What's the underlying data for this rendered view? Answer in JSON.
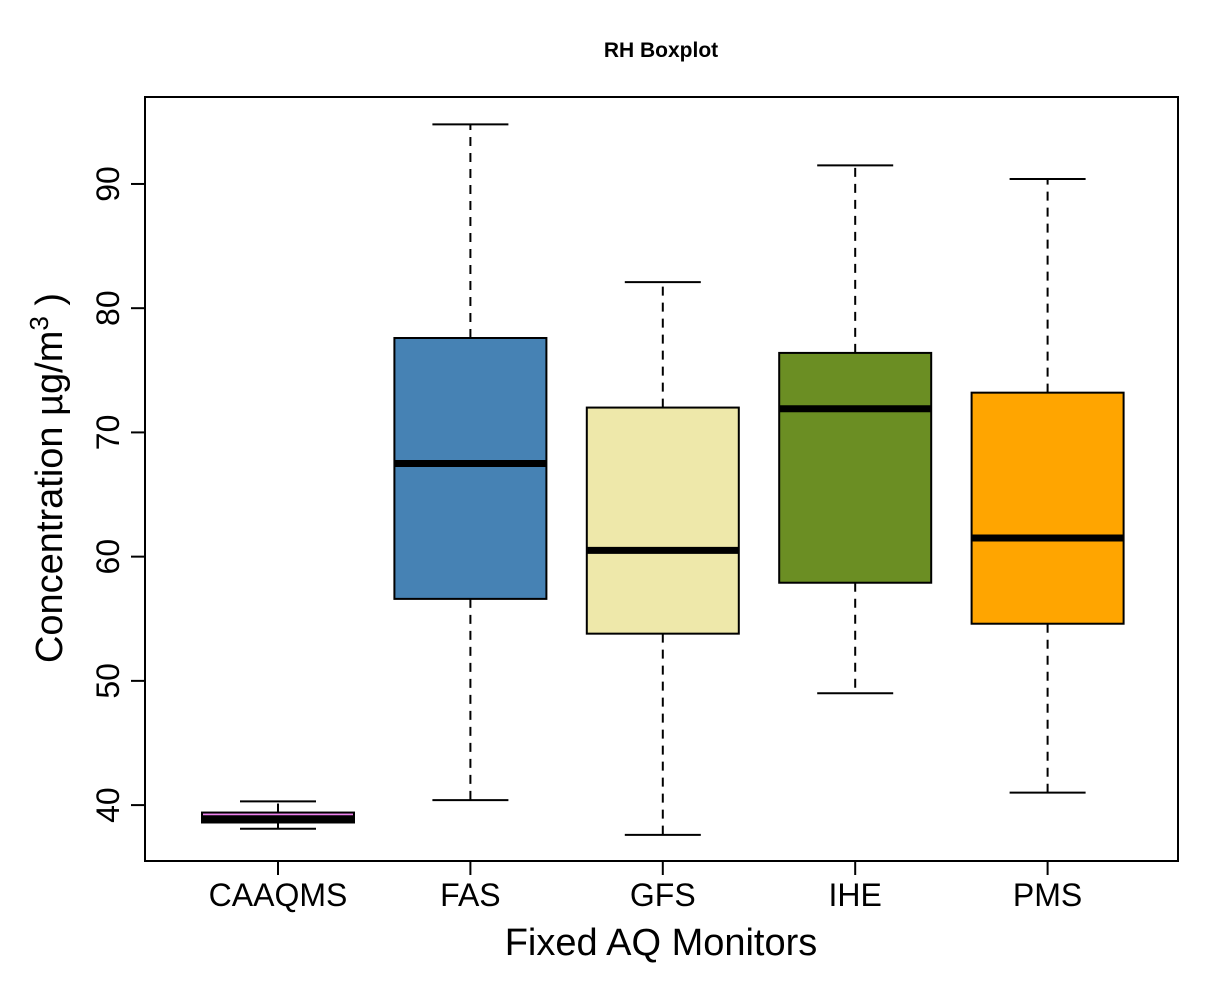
{
  "chart_data": {
    "type": "boxplot",
    "title": "RH Boxplot",
    "xlabel": "Fixed AQ Monitors",
    "ylabel": {
      "text": "Concentration µg/m",
      "superscript": "3",
      "suffix": " )"
    },
    "ylim": [
      35.5,
      97
    ],
    "yticks": [
      40,
      50,
      60,
      70,
      80,
      90
    ],
    "grid": false,
    "legend": "none",
    "categories": [
      "CAAQMS",
      "FAS",
      "GFS",
      "IHE",
      "PMS"
    ],
    "boxes": [
      {
        "category": "CAAQMS",
        "min": 38.1,
        "q1": 38.6,
        "median": 38.9,
        "q3": 39.4,
        "max": 40.3,
        "color": "#ee82ee"
      },
      {
        "category": "FAS",
        "min": 40.4,
        "q1": 56.6,
        "median": 67.5,
        "q3": 77.6,
        "max": 94.8,
        "color": "#4682b4"
      },
      {
        "category": "GFS",
        "min": 37.6,
        "q1": 53.8,
        "median": 60.5,
        "q3": 72.0,
        "max": 82.1,
        "color": "#eee8aa"
      },
      {
        "category": "IHE",
        "min": 49.0,
        "q1": 57.9,
        "median": 71.9,
        "q3": 76.4,
        "max": 91.5,
        "color": "#6b8e23"
      },
      {
        "category": "PMS",
        "min": 41.0,
        "q1": 54.6,
        "median": 61.5,
        "q3": 73.2,
        "max": 90.4,
        "color": "#ffa500"
      }
    ]
  }
}
